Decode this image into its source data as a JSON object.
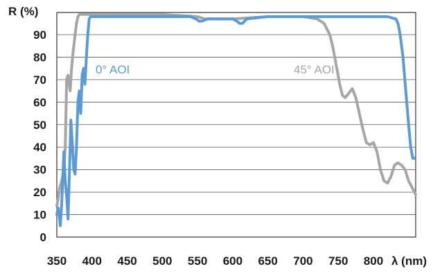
{
  "chart_data": {
    "type": "line",
    "ylabel": "R (%)",
    "xlabel": "λ (nm)",
    "xlim": [
      350,
      860
    ],
    "ylim": [
      0,
      100
    ],
    "x_ticks": [
      350,
      400,
      450,
      500,
      550,
      600,
      650,
      700,
      750,
      800
    ],
    "y_ticks": [
      0,
      10,
      20,
      30,
      40,
      50,
      60,
      70,
      80,
      90
    ],
    "grid": "horizontal",
    "legend": "inline labels",
    "series": [
      {
        "name": "0° AOI",
        "color": "#5b9bd5",
        "x": [
          350,
          352,
          355,
          357,
          360,
          362,
          364,
          366,
          368,
          370,
          372,
          374,
          376,
          378,
          380,
          382,
          384,
          386,
          388,
          390,
          392,
          394,
          396,
          398,
          400,
          410,
          450,
          500,
          540,
          548,
          552,
          556,
          565,
          600,
          606,
          610,
          614,
          620,
          650,
          700,
          750,
          800,
          820,
          832,
          835,
          838,
          842,
          846,
          850,
          853,
          856,
          858
        ],
        "y": [
          10,
          13,
          5,
          15,
          38,
          25,
          18,
          8,
          30,
          52,
          42,
          30,
          28,
          40,
          60,
          65,
          55,
          72,
          75,
          68,
          80,
          90,
          97,
          98,
          98,
          98,
          98,
          98,
          98,
          97,
          96,
          96,
          97,
          97,
          96,
          95,
          95,
          97,
          98,
          98,
          98,
          98,
          98,
          97,
          95,
          90,
          80,
          65,
          50,
          40,
          35,
          35
        ]
      },
      {
        "name": "45° AOI",
        "color": "#a6a6a6",
        "x": [
          350,
          352,
          354,
          357,
          360,
          362,
          364,
          366,
          368,
          369,
          371,
          373,
          376,
          378,
          380,
          382,
          384,
          386,
          390,
          400,
          450,
          500,
          550,
          560,
          600,
          650,
          700,
          720,
          730,
          738,
          742,
          748,
          752,
          756,
          760,
          765,
          770,
          775,
          780,
          785,
          790,
          795,
          800,
          805,
          810,
          815,
          820,
          825,
          830,
          835,
          840,
          845,
          850,
          855,
          860
        ],
        "y": [
          14,
          17,
          22,
          25,
          30,
          40,
          70,
          72,
          67,
          65,
          75,
          82,
          90,
          95,
          98,
          99,
          99,
          99,
          99,
          99,
          99,
          99,
          98,
          97,
          97,
          98,
          98,
          97,
          95,
          90,
          85,
          75,
          68,
          63,
          62,
          64,
          66,
          62,
          55,
          48,
          42,
          41,
          42,
          38,
          30,
          25,
          24,
          27,
          32,
          33,
          32,
          30,
          25,
          22,
          19
        ]
      }
    ]
  }
}
